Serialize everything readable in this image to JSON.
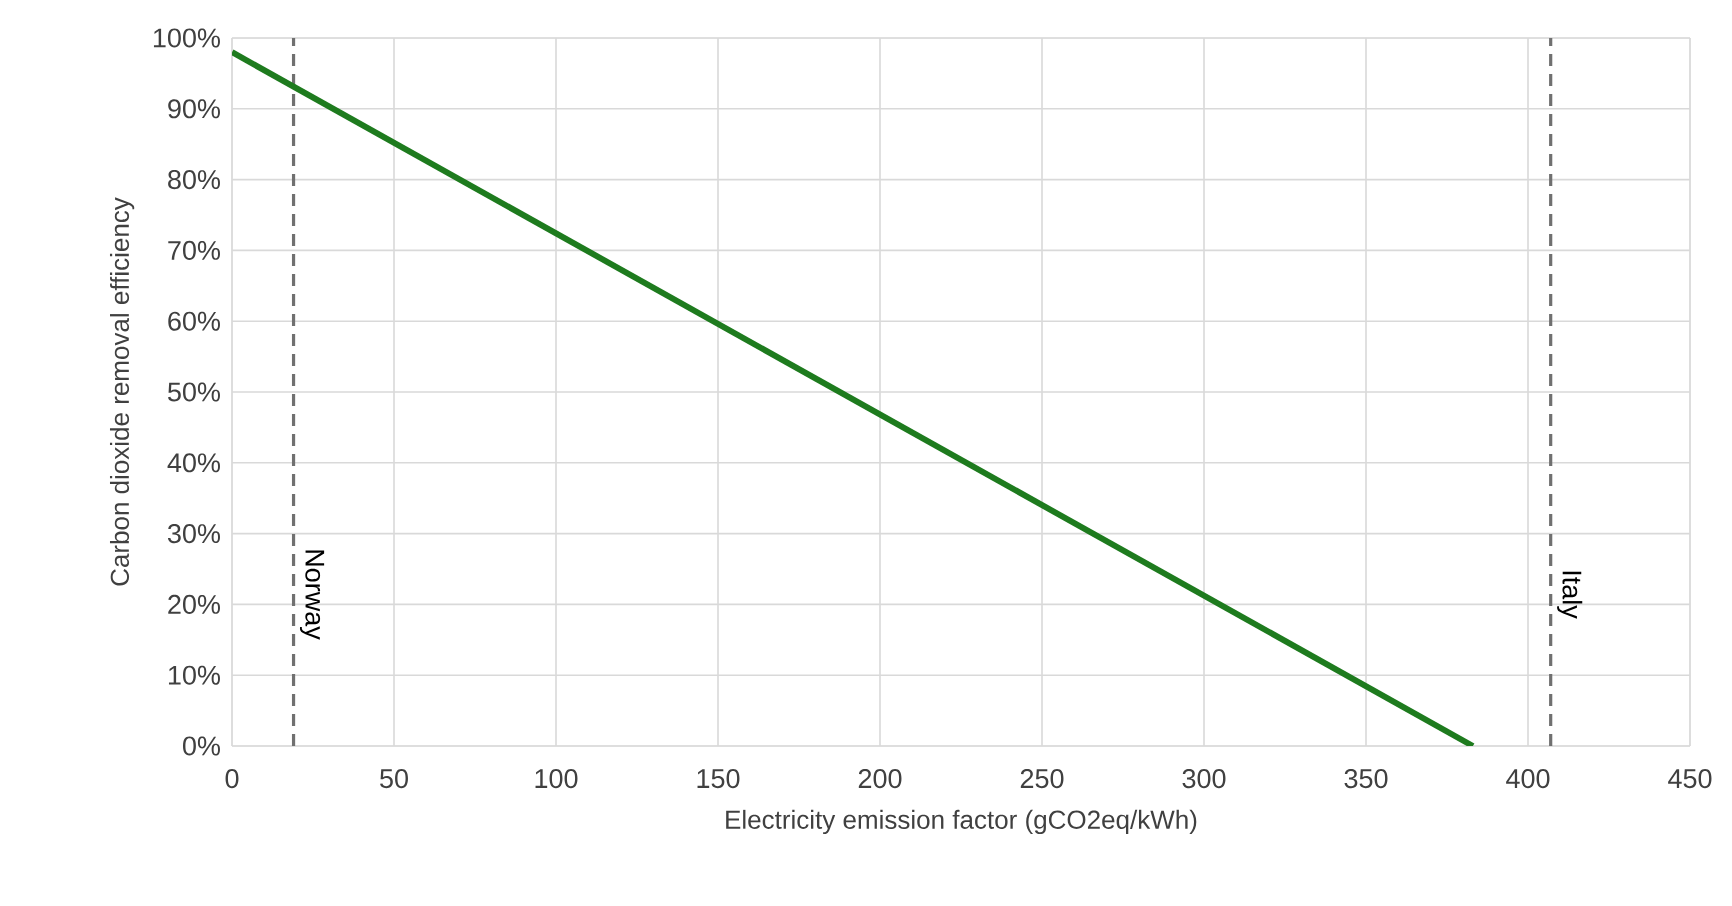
{
  "chart_data": {
    "type": "line",
    "xlabel": "Electricity emission factor (gCO2eq/kWh)",
    "ylabel": "Carbon dioxide removal efficiency",
    "x": [
      0,
      383
    ],
    "series": [
      {
        "color": "#1e7b1e",
        "values": [
          98,
          0
        ]
      }
    ],
    "xlim": [
      0,
      450
    ],
    "xticks": [
      0,
      50,
      100,
      150,
      200,
      250,
      300,
      350,
      400,
      450
    ],
    "ylim": [
      0,
      100
    ],
    "yticks": [
      {
        "value": 0,
        "label": "0%"
      },
      {
        "value": 10,
        "label": "10%"
      },
      {
        "value": 20,
        "label": "20%"
      },
      {
        "value": 30,
        "label": "30%"
      },
      {
        "value": 40,
        "label": "40%"
      },
      {
        "value": 50,
        "label": "50%"
      },
      {
        "value": 60,
        "label": "60%"
      },
      {
        "value": 70,
        "label": "70%"
      },
      {
        "value": 80,
        "label": "80%"
      },
      {
        "value": 90,
        "label": "90%"
      },
      {
        "value": 100,
        "label": "100%"
      }
    ],
    "grid": true,
    "marker": "none",
    "line_style": "solid",
    "ref_lines": [
      {
        "axis": "x",
        "value": 19,
        "label": "Norway",
        "color": "#707070",
        "line_style": "dashed"
      },
      {
        "axis": "x",
        "value": 407,
        "label": "Italy",
        "color": "#707070",
        "line_style": "dashed"
      }
    ]
  }
}
